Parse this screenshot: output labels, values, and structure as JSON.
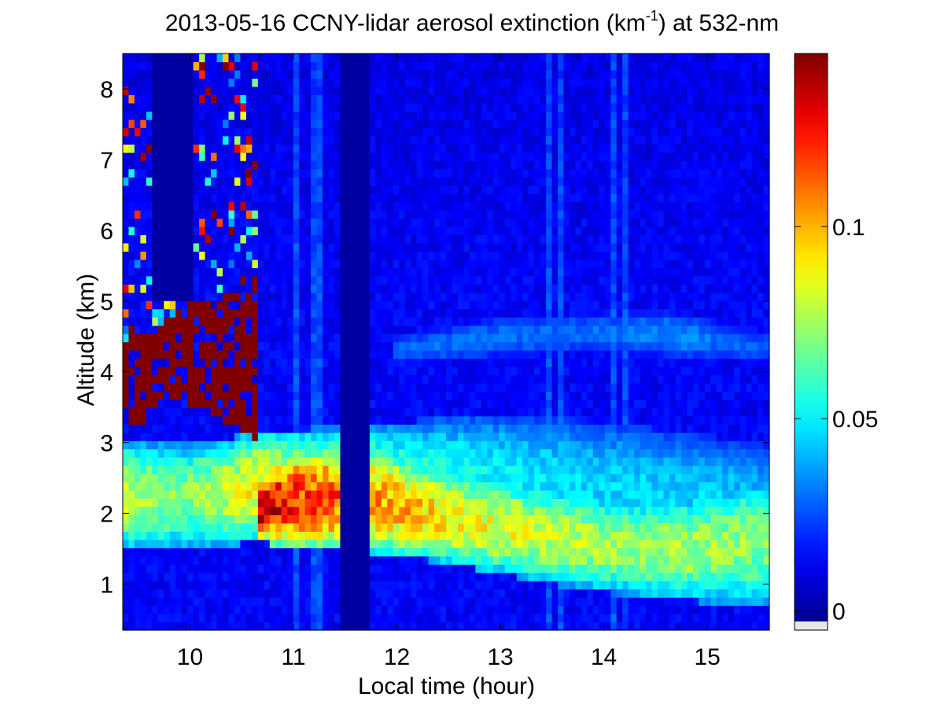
{
  "chart_data": {
    "type": "heatmap",
    "title_main": "2013-05-16 CCNY-lidar aerosol extinction (km",
    "title_sup": "-1",
    "title_end": ") at 532-nm",
    "xlabel": "Local time (hour)",
    "ylabel": "Altitude (km)",
    "x_range": [
      9.35,
      15.6
    ],
    "y_range": [
      0.35,
      8.5
    ],
    "x_ticks": [
      "10",
      "11",
      "12",
      "13",
      "14",
      "15"
    ],
    "y_ticks": [
      "1",
      "2",
      "3",
      "4",
      "5",
      "6",
      "7",
      "8"
    ],
    "colorbar": {
      "range": [
        -0.005,
        0.145
      ],
      "ticks": [
        "0",
        "0.05",
        "0.1"
      ],
      "colormap": "jet",
      "below_range_color": "#e6e6e6"
    },
    "layers": [
      {
        "name": "saturated-cloud",
        "x_start": 9.35,
        "x_end": 10.65,
        "alt_top_km": [
          4.45,
          4.6,
          4.75,
          4.95,
          5.05,
          5.1,
          5.2
        ],
        "alt_base_km": [
          3.2,
          3.3,
          3.7,
          3.55,
          3.4,
          3.25,
          3.0
        ],
        "extinction": 0.15
      },
      {
        "name": "upper-aerosol-layer",
        "x": [
          10.7,
          11.0,
          11.5,
          12.0,
          12.5,
          13.0,
          13.5,
          14.0,
          14.5,
          15.0,
          15.6
        ],
        "top_km": [
          2.6,
          2.9,
          3.0,
          2.85,
          2.6,
          2.5,
          2.35,
          2.25,
          2.2,
          2.3,
          2.55
        ],
        "base_km": [
          1.6,
          1.5,
          1.45,
          1.4,
          1.3,
          1.15,
          1.0,
          0.9,
          0.8,
          0.75,
          0.7
        ],
        "peak_extinction": [
          0.14,
          0.12,
          0.11,
          0.1,
          0.09,
          0.085,
          0.08,
          0.075,
          0.075,
          0.075,
          0.07
        ]
      },
      {
        "name": "residual-layer",
        "x": [
          9.35,
          10.0,
          10.7,
          12.0,
          13.0,
          14.0,
          15.0,
          15.6
        ],
        "top_km": [
          3.0,
          3.0,
          3.15,
          3.3,
          3.4,
          3.3,
          3.1,
          3.0
        ],
        "base_km": [
          1.5,
          1.5,
          1.6,
          1.7,
          1.6,
          1.4,
          1.3,
          1.2
        ],
        "peak_extinction": [
          0.08,
          0.07,
          0.09,
          0.06,
          0.05,
          0.045,
          0.045,
          0.04
        ]
      },
      {
        "name": "elevated-thin-layer",
        "x": [
          12.0,
          13.0,
          14.0,
          14.7,
          15.6
        ],
        "top_km": [
          4.5,
          4.8,
          4.85,
          4.85,
          4.6
        ],
        "base_km": [
          4.1,
          4.2,
          4.3,
          4.2,
          4.1
        ],
        "peak_extinction": [
          0.03,
          0.03,
          0.03,
          0.035,
          0.025
        ]
      }
    ],
    "data_gaps": [
      {
        "x_start": 9.62,
        "x_end": 10.02,
        "alt_min_km": 5.0,
        "value": 0.0
      },
      {
        "x_start": 11.45,
        "x_end": 11.72,
        "alt_min_km": 0.35,
        "value": 0.0
      }
    ]
  }
}
